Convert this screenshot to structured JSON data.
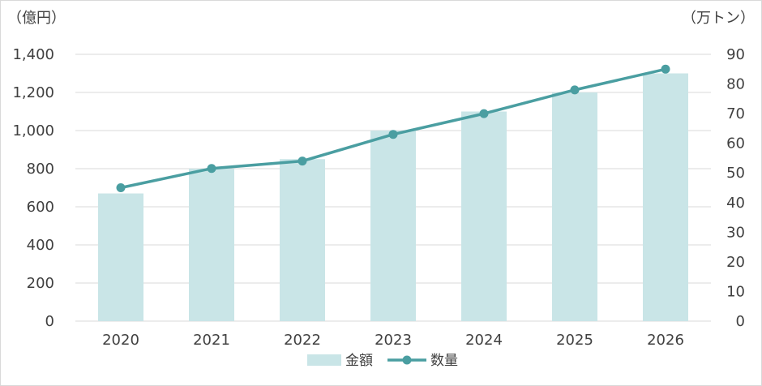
{
  "chart_data": {
    "type": "bar",
    "categories": [
      "2020",
      "2021",
      "2022",
      "2023",
      "2024",
      "2025",
      "2026"
    ],
    "series": [
      {
        "name": "金額",
        "type": "bar",
        "axis": "left",
        "values": [
          670,
          800,
          850,
          1000,
          1100,
          1200,
          1300
        ],
        "color": "#c9e5e7"
      },
      {
        "name": "数量",
        "type": "line",
        "axis": "right",
        "values": [
          45,
          51.5,
          54,
          63,
          70,
          78,
          85
        ],
        "color": "#4a9ea1"
      }
    ],
    "y_left": {
      "unit": "（億円）",
      "range": [
        0,
        1400
      ],
      "ticks": [
        "0",
        "200",
        "400",
        "600",
        "800",
        "1,000",
        "1,200",
        "1,400"
      ],
      "tick_values": [
        0,
        200,
        400,
        600,
        800,
        1000,
        1200,
        1400
      ]
    },
    "y_right": {
      "unit": "（万トン）",
      "range": [
        0,
        90
      ],
      "ticks": [
        "0",
        "10",
        "20",
        "30",
        "40",
        "50",
        "60",
        "70",
        "80",
        "90"
      ],
      "tick_values": [
        0,
        10,
        20,
        30,
        40,
        50,
        60,
        70,
        80,
        90
      ]
    },
    "grid": true,
    "legend_position": "bottom",
    "gridline_color": "#d9d9d9",
    "text_color": "#404040"
  }
}
